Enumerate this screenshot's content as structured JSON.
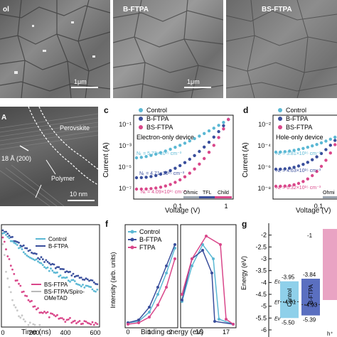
{
  "panel_labels": {
    "c": "c",
    "d": "d",
    "f": "f",
    "g": "g"
  },
  "sem": {
    "control": "ol",
    "bftpa": "B-FTPA",
    "bsftpa": "BS-FTPA",
    "scale": "1μm"
  },
  "tem": {
    "perovskite": "Perovskite",
    "polymer": "Polymer",
    "spacing": "18 Å (200)",
    "scale": "10 nm",
    "corner": "A"
  },
  "panel_e": {
    "xlabel": "Time (ns)",
    "legend1": [
      "Control",
      "B-FTPA"
    ],
    "legend2": [
      "BS-FTPA",
      "BS-FTPA/Spiro-",
      "OMeTAD"
    ],
    "ticks": [
      "0",
      "200",
      "400",
      "600"
    ],
    "colors": {
      "control": "#5bb8d4",
      "bftpa": "#3a4f9c",
      "bsftpa": "#d9478a",
      "spiro": "#c9c9c9"
    }
  },
  "panel_c": {
    "title": "Electron-only device",
    "xlabel": "Voltage (V)",
    "ylabel": "Current (A)",
    "yticks": [
      "10⁻¹",
      "10⁻³",
      "10⁻⁵",
      "10⁻⁷"
    ],
    "xticks": [
      "0.1",
      "1"
    ],
    "legend": [
      "Control",
      "B-FTPA",
      "BS-FTPA"
    ],
    "annotations": [
      "Nₜ = 5.72×10¹⁵ cm⁻³",
      "Nₜ = 4.71×10¹⁵ cm⁻³",
      "Nₜ = 4.09×10¹⁵ cm⁻³"
    ],
    "regions": [
      "Ohmic",
      "TFL",
      "Child"
    ]
  },
  "panel_d": {
    "title": "Hole-only device",
    "xlabel": "Voltage (V)",
    "ylabel": "Current (A)",
    "yticks": [
      "10⁻²",
      "10⁻⁴",
      "10⁻⁶",
      "10⁻⁸"
    ],
    "xticks": [
      "0.1"
    ],
    "legend": [
      "Control",
      "B-FTPA",
      "BS-FTPA"
    ],
    "annotations": [
      "Nₜ = 3.81×10¹⁵ cm⁻³",
      "Nₜ = 4.63×10¹⁵ cm⁻³",
      "Nₜ = 6.32×10¹⁵ cm⁻³"
    ],
    "regions": [
      "Ohmi"
    ]
  },
  "panel_f": {
    "xlabel": "Binding energy (eV)",
    "ylabel": "Intensity (arb. units)",
    "legend": [
      "Control",
      "B-FTPA",
      "FTPA"
    ],
    "xticks_left": [
      "0",
      "1",
      "2"
    ],
    "xticks_right": [
      "16",
      "17"
    ]
  },
  "panel_g": {
    "ylabel": "Energy (eV)",
    "yticks": [
      "-2",
      "-2.5",
      "-3",
      "-3.5",
      "-4",
      "-4.5",
      "-5",
      "-5.5",
      "-6"
    ],
    "control": {
      "name": "Control",
      "top": "-3.95",
      "mid": "-4.81",
      "bottom": "-5.50"
    },
    "bftpa": {
      "name": "B-FTPA",
      "top": "-3.84",
      "mid": "-4.93",
      "bottom": "-5.39"
    },
    "side_labels": [
      "Ec",
      "Ef",
      "Ev"
    ],
    "extra": [
      "-1",
      "h⁺"
    ]
  },
  "chart_data": [
    {
      "type": "line",
      "panel": "c",
      "title": "Electron-only device",
      "xlabel": "Voltage (V)",
      "ylabel": "Current (A)",
      "series": [
        {
          "name": "Control",
          "trap_density": "5.72×10¹⁵ cm⁻³"
        },
        {
          "name": "B-FTPA",
          "trap_density": "4.71×10¹⁵ cm⁻³"
        },
        {
          "name": "BS-FTPA",
          "trap_density": "4.09×10¹⁵ cm⁻³"
        }
      ]
    },
    {
      "type": "line",
      "panel": "d",
      "title": "Hole-only device",
      "xlabel": "Voltage (V)",
      "ylabel": "Current (A)",
      "series": [
        {
          "name": "Control",
          "trap_density": "3.81×10¹⁵ cm⁻³"
        },
        {
          "name": "B-FTPA",
          "trap_density": "4.63×10¹⁵ cm⁻³"
        },
        {
          "name": "BS-FTPA",
          "trap_density": "6.32×10¹⁵ cm⁻³"
        }
      ]
    },
    {
      "type": "line",
      "panel": "f",
      "xlabel": "Binding energy (eV)",
      "ylabel": "Intensity (arb. units)",
      "series": [
        {
          "name": "Control"
        },
        {
          "name": "B-FTPA"
        },
        {
          "name": "FTPA"
        }
      ]
    },
    {
      "type": "bar",
      "panel": "g",
      "ylabel": "Energy (eV)",
      "categories": [
        "Control",
        "B-FTPA"
      ],
      "series": [
        {
          "name": "Ec",
          "values": [
            -3.95,
            -3.84
          ]
        },
        {
          "name": "Ef",
          "values": [
            -4.81,
            -4.93
          ]
        },
        {
          "name": "Ev",
          "values": [
            -5.5,
            -5.39
          ]
        }
      ]
    }
  ]
}
